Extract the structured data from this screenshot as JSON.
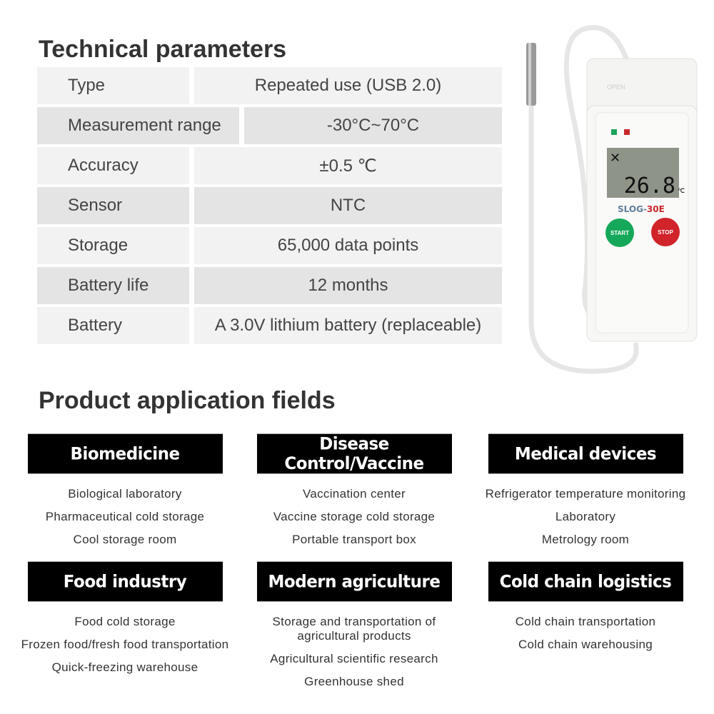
{
  "tech": {
    "title": "Technical parameters",
    "rows": [
      {
        "label": "Type",
        "value": "Repeated use (USB 2.0)"
      },
      {
        "label": "Measurement range",
        "value": "-30°C~70°C"
      },
      {
        "label": "Accuracy",
        "value": "±0.5 ℃"
      },
      {
        "label": "Sensor",
        "value": "NTC"
      },
      {
        "label": "Storage",
        "value": "65,000 data points"
      },
      {
        "label": "Battery life",
        "value": "12 months"
      },
      {
        "label": "Battery",
        "value": "A 3.0V lithium battery (replaceable)"
      }
    ]
  },
  "device": {
    "model_prefix": "SLOG-",
    "model_suffix": "30E",
    "reading": "26.8",
    "unit": "℃",
    "start": "START",
    "stop": "STOP",
    "open": "OPEN"
  },
  "apps": {
    "title": "Product application fields",
    "fields": [
      {
        "name": "Biomedicine",
        "items": [
          "Biological laboratory",
          "Pharmaceutical cold storage",
          "Cool storage room"
        ]
      },
      {
        "name": "Disease Control/Vaccine",
        "items": [
          "Vaccination center",
          "Vaccine storage cold storage",
          "Portable transport box"
        ]
      },
      {
        "name": "Medical devices",
        "items": [
          "Refrigerator temperature monitoring",
          "Laboratory",
          "Metrology room"
        ]
      },
      {
        "name": "Food industry",
        "items": [
          "Food cold storage",
          "Frozen food/fresh food transportation",
          "Quick-freezing warehouse"
        ]
      },
      {
        "name": "Modern agriculture",
        "items": [
          "Storage and transportation of agricultural products",
          "Agricultural scientific research",
          "Greenhouse shed"
        ]
      },
      {
        "name": "Cold chain logistics",
        "items": [
          "Cold chain transportation",
          "Cold chain warehousing"
        ]
      }
    ]
  }
}
